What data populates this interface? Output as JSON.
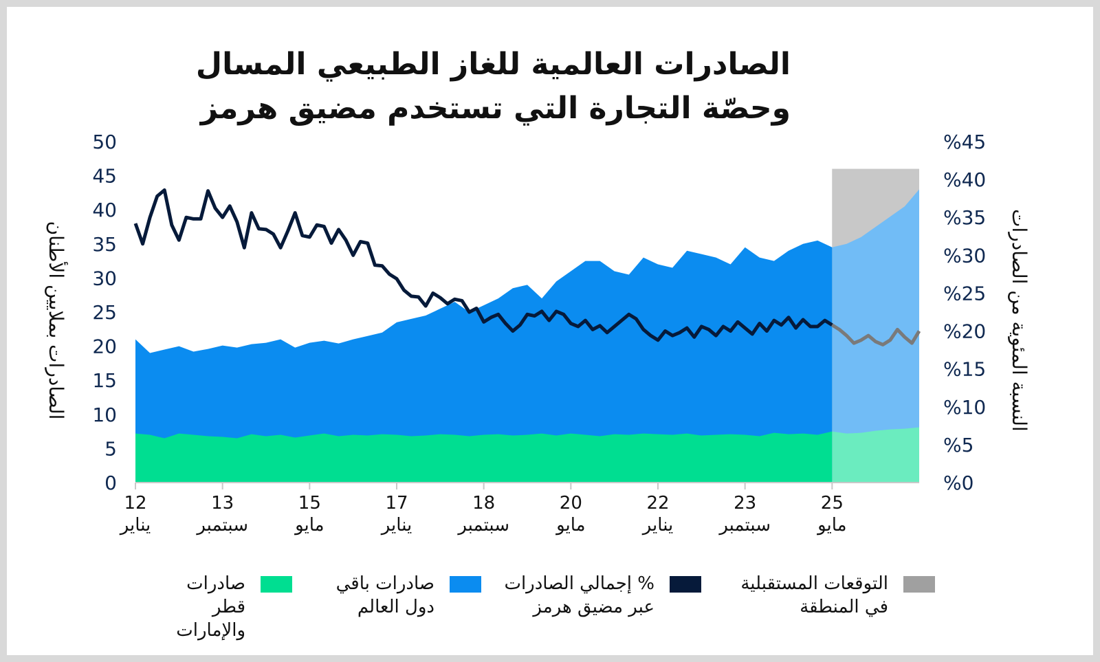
{
  "title_lines": [
    "الصادرات العالمية للغاز الطبيعي المسال",
    "وحصّة التجارة التي تستخدم مضيق هرمز"
  ],
  "colors": {
    "qatar_uae": "#00de91",
    "rest_world": "#0b8cf0",
    "hormuz_share": "#061a3a",
    "forecast": "#a0a0a0",
    "axis_text": "#0f2850"
  },
  "legend": [
    {
      "label": "التوقعات المستقبلية\nفي المنطقة",
      "color": "#a0a0a0"
    },
    {
      "label": "% إجمالي الصادرات\nعبر مضيق هرمز",
      "color": "#061a3a"
    },
    {
      "label": "صادرات باقي\nدول العالم",
      "color": "#0b8cf0"
    },
    {
      "label": "صادرات قطر\nوالإمارات",
      "color": "#00de91"
    }
  ],
  "chart_data": {
    "type": "area",
    "title": "الصادرات العالمية للغاز الطبيعي المسال وحصّة التجارة التي تستخدم مضيق هرمز",
    "ylabel_left": "الصادرات بملايين الأطنان",
    "ylabel_right": "النسبة المئوية من الصادرات",
    "ylim_left": [
      0,
      50
    ],
    "ylim_right": [
      0,
      45
    ],
    "yticks_left": [
      "0",
      "5",
      "10",
      "15",
      "20",
      "25",
      "30",
      "35",
      "40",
      "45",
      "50"
    ],
    "yticks_right": [
      "%0",
      "%5",
      "%10",
      "%15",
      "%20",
      "%25",
      "%30",
      "%35",
      "%40",
      "%45"
    ],
    "x_range": [
      0,
      54
    ],
    "xticks": [
      {
        "x": 0,
        "year": "12",
        "month": "يناير"
      },
      {
        "x": 6,
        "year": "13",
        "month": "سبتمبر"
      },
      {
        "x": 12,
        "year": "15",
        "month": "مايو"
      },
      {
        "x": 18,
        "year": "17",
        "month": "يناير"
      },
      {
        "x": 24,
        "year": "18",
        "month": "سبتمبر"
      },
      {
        "x": 30,
        "year": "20",
        "month": "مايو"
      },
      {
        "x": 36,
        "year": "22",
        "month": "يناير"
      },
      {
        "x": 42,
        "year": "23",
        "month": "سبتمبر"
      },
      {
        "x": 48,
        "year": "25",
        "month": "مايو"
      }
    ],
    "forecast_start_x": 48,
    "forecast_top_left": 46,
    "series": [
      {
        "name": "صادرات قطر والإمارات",
        "type": "area",
        "axis": "left",
        "x": [
          0,
          1,
          2,
          3,
          4,
          5,
          6,
          7,
          8,
          9,
          10,
          11,
          12,
          13,
          14,
          15,
          16,
          17,
          18,
          19,
          20,
          21,
          22,
          23,
          24,
          25,
          26,
          27,
          28,
          29,
          30,
          31,
          32,
          33,
          34,
          35,
          36,
          37,
          38,
          39,
          40,
          41,
          42,
          43,
          44,
          45,
          46,
          47,
          48,
          49,
          50,
          51,
          52,
          53,
          54
        ],
        "values": [
          7.2,
          7.0,
          6.5,
          7.2,
          7.0,
          6.8,
          6.7,
          6.5,
          7.1,
          6.8,
          7.0,
          6.6,
          6.9,
          7.2,
          6.8,
          7.0,
          6.9,
          7.1,
          7.0,
          6.8,
          6.9,
          7.1,
          7.0,
          6.8,
          7.0,
          7.1,
          6.9,
          7.0,
          7.2,
          6.9,
          7.2,
          7.0,
          6.8,
          7.1,
          7.0,
          7.2,
          7.1,
          7.0,
          7.2,
          6.9,
          7.0,
          7.1,
          7.0,
          6.8,
          7.3,
          7.1,
          7.2,
          7.0,
          7.5,
          7.2,
          7.3,
          7.6,
          7.8,
          7.9,
          8.1
        ]
      },
      {
        "name": "صادرات باقي دول العالم",
        "type": "area",
        "axis": "left",
        "note_stacking": "cumulative total shown",
        "x": [
          0,
          1,
          2,
          3,
          4,
          5,
          6,
          7,
          8,
          9,
          10,
          11,
          12,
          13,
          14,
          15,
          16,
          17,
          18,
          19,
          20,
          21,
          22,
          23,
          24,
          25,
          26,
          27,
          28,
          29,
          30,
          31,
          32,
          33,
          34,
          35,
          36,
          37,
          38,
          39,
          40,
          41,
          42,
          43,
          44,
          45,
          46,
          47,
          48,
          49,
          50,
          51,
          52,
          53,
          54
        ],
        "values": [
          21.0,
          19.0,
          19.5,
          20.0,
          19.2,
          19.6,
          20.1,
          19.8,
          20.3,
          20.5,
          21.0,
          19.8,
          20.5,
          20.8,
          20.4,
          21.0,
          21.5,
          22.0,
          23.5,
          24.0,
          24.5,
          25.5,
          26.5,
          25.0,
          26.0,
          27.0,
          28.5,
          29.0,
          27.0,
          29.5,
          31.0,
          32.5,
          32.5,
          31.0,
          30.5,
          33.0,
          32.0,
          31.5,
          34.0,
          33.5,
          33.0,
          32.0,
          34.5,
          33.0,
          32.5,
          34.0,
          35.0,
          35.5,
          34.5,
          35.0,
          36.0,
          37.5,
          39.0,
          40.5,
          43.0
        ]
      },
      {
        "name": "% إجمالي الصادرات عبر مضيق هرمز",
        "type": "line",
        "axis": "right",
        "x": [
          0,
          0.5,
          1,
          1.5,
          2,
          2.5,
          3,
          3.5,
          4,
          4.5,
          5,
          5.5,
          6,
          6.5,
          7,
          7.5,
          8,
          8.5,
          9,
          9.5,
          10,
          10.5,
          11,
          11.5,
          12,
          12.5,
          13,
          13.5,
          14,
          14.5,
          15,
          15.5,
          16,
          16.5,
          17,
          17.5,
          18,
          18.5,
          19,
          19.5,
          20,
          20.5,
          21,
          21.5,
          22,
          22.5,
          23,
          23.5,
          24,
          24.5,
          25,
          25.5,
          26,
          26.5,
          27,
          27.5,
          28,
          28.5,
          29,
          29.5,
          30,
          30.5,
          31,
          31.5,
          32,
          32.5,
          33,
          33.5,
          34,
          34.5,
          35,
          35.5,
          36,
          36.5,
          37,
          37.5,
          38,
          38.5,
          39,
          39.5,
          40,
          40.5,
          41,
          41.5,
          42,
          42.5,
          43,
          43.5,
          44,
          44.5,
          45,
          45.5,
          46,
          46.5,
          47,
          47.5,
          48
        ],
        "values": [
          34.2,
          31.5,
          35.0,
          37.8,
          38.6,
          34.0,
          32.0,
          35.0,
          34.8,
          34.8,
          38.5,
          36.2,
          35.0,
          36.5,
          34.4,
          31.0,
          35.6,
          33.5,
          33.4,
          32.8,
          31.0,
          33.2,
          35.6,
          32.6,
          32.4,
          34.0,
          33.8,
          31.6,
          33.4,
          32.0,
          30.0,
          31.8,
          31.6,
          28.7,
          28.6,
          27.5,
          26.9,
          25.4,
          24.6,
          24.5,
          23.3,
          25.0,
          24.4,
          23.6,
          24.2,
          24.0,
          22.5,
          23.0,
          21.2,
          21.8,
          22.2,
          21.0,
          20.0,
          20.8,
          22.2,
          22.0,
          22.6,
          21.4,
          22.6,
          22.2,
          21.0,
          20.6,
          21.4,
          20.2,
          20.7,
          19.8,
          20.6,
          21.4,
          22.2,
          21.6,
          20.2,
          19.4,
          18.8,
          20.0,
          19.4,
          19.8,
          20.4,
          19.2,
          20.6,
          20.2,
          19.4,
          20.6,
          20.0,
          21.2,
          20.4,
          19.6,
          21.0,
          20.0,
          21.4,
          20.8,
          21.8,
          20.4,
          21.5,
          20.6,
          20.6,
          21.4,
          20.8
        ]
      },
      {
        "name": "التوقعات المستقبلية في المنطقة",
        "type": "line",
        "axis": "right",
        "x": [
          48,
          48.5,
          49,
          49.5,
          50,
          50.5,
          51,
          51.5,
          52,
          52.5,
          53,
          53.5,
          54
        ],
        "values": [
          20.8,
          20.2,
          19.4,
          18.4,
          18.8,
          19.4,
          18.6,
          18.2,
          18.8,
          20.2,
          19.2,
          18.4,
          20.0
        ]
      }
    ]
  }
}
